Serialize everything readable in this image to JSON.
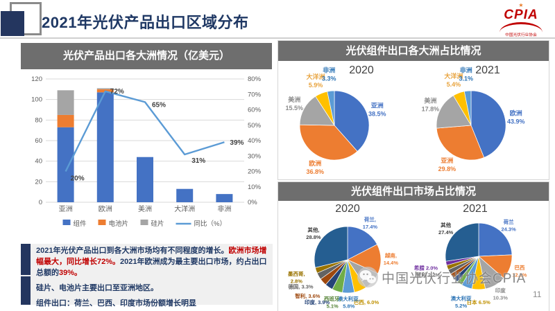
{
  "header": {
    "title": "2021年光伏产品出口区域分布",
    "logo": {
      "text": "CPIA",
      "subtext": "中国光伏行业协会",
      "sun_icon": "★"
    }
  },
  "panels": {
    "bar_panel_title": "光伏产品出口各大洲情况（亿美元）",
    "pie_continent_title": "光伏组件出口各大洲占比情况",
    "pie_market_title": "光伏组件出口市场占比情况"
  },
  "chart_data": [
    {
      "id": "combo",
      "type": "bar",
      "title": "光伏产品出口各大洲情况（亿美元）",
      "categories": [
        "亚洲",
        "欧洲",
        "美洲",
        "大洋洲",
        "非洲"
      ],
      "bar_series": [
        {
          "name": "组件",
          "color": "#4472C4",
          "values": [
            73,
            107,
            44,
            13,
            8
          ]
        },
        {
          "name": "电池片",
          "color": "#ED7D31",
          "values": [
            12,
            3,
            0,
            0,
            0
          ]
        },
        {
          "name": "硅片",
          "color": "#A5A5A5",
          "values": [
            24,
            1,
            0,
            0,
            0
          ]
        }
      ],
      "line_series": {
        "name": "同比（%）",
        "color": "#5B9BD5",
        "values": [
          20,
          72,
          65,
          31,
          39
        ],
        "point_labels": [
          "20%",
          "72%",
          "65%",
          "31%",
          "39%"
        ]
      },
      "y_left": {
        "min": 0,
        "max": 120,
        "step": 20
      },
      "y_right": {
        "min": 0,
        "max": 80,
        "step": 10,
        "suffix": "%"
      },
      "grid": true,
      "legend_position": "bottom"
    },
    {
      "id": "cont2020",
      "type": "pie",
      "title": "2020",
      "slices": [
        {
          "name": "亚洲",
          "pct": 38.5,
          "color": "#4472C4",
          "label": [
            "亚洲",
            "38.5%"
          ],
          "label_color": "#4472C4"
        },
        {
          "name": "欧洲",
          "pct": 36.8,
          "color": "#ED7D31",
          "label": [
            "欧洲",
            "36.8%"
          ],
          "label_color": "#ED7D31"
        },
        {
          "name": "美洲",
          "pct": 15.5,
          "color": "#A5A5A5",
          "label": [
            "美洲",
            "15.5%"
          ],
          "label_color": "#8C8C8C"
        },
        {
          "name": "大洋洲",
          "pct": 5.9,
          "color": "#FFC000",
          "label": [
            "大洋洲",
            "5.9%"
          ],
          "label_color": "#E8A33D"
        },
        {
          "name": "非洲",
          "pct": 3.3,
          "color": "#5B9BD5",
          "label": [
            "非洲",
            "3.3%"
          ],
          "label_color": "#2E75B6"
        }
      ]
    },
    {
      "id": "cont2021",
      "type": "pie",
      "title": "2021",
      "slices": [
        {
          "name": "欧洲",
          "pct": 43.9,
          "color": "#4472C4",
          "label": [
            "欧洲",
            "43.9%"
          ],
          "label_color": "#4472C4"
        },
        {
          "name": "亚洲",
          "pct": 29.8,
          "color": "#ED7D31",
          "label": [
            "亚洲",
            "29.8%"
          ],
          "label_color": "#ED7D31"
        },
        {
          "name": "美洲",
          "pct": 17.8,
          "color": "#A5A5A5",
          "label": [
            "美洲",
            "17.8%"
          ],
          "label_color": "#8C8C8C"
        },
        {
          "name": "大洋洲",
          "pct": 5.4,
          "color": "#FFC000",
          "label": [
            "大洋洲",
            "5.4%"
          ],
          "label_color": "#E8A33D"
        },
        {
          "name": "非洲",
          "pct": 3.1,
          "color": "#5B9BD5",
          "label": [
            "非洲",
            "3.1%"
          ],
          "label_color": "#2E75B6"
        }
      ]
    },
    {
      "id": "mkt2020",
      "type": "pie",
      "title": "2020",
      "slices": [
        {
          "name": "荷兰",
          "pct": 17.4,
          "color": "#4472C4",
          "label": [
            "荷兰,",
            "17.4%"
          ],
          "label_color": "#4472C4"
        },
        {
          "name": "越南",
          "pct": 14.4,
          "color": "#ED7D31",
          "label": [
            "越南,",
            "14.4%"
          ],
          "label_color": "#ED7D31"
        },
        {
          "name": "",
          "pct": 8.9,
          "color": "#A5A5A5",
          "label": [],
          "label_color": "#8C8C8C"
        },
        {
          "name": "巴西",
          "pct": 6.0,
          "color": "#FFC000",
          "label": [
            "巴西, 6.0%"
          ],
          "label_color": "#BF9000"
        },
        {
          "name": "澳大利亚",
          "pct": 5.8,
          "color": "#5B9BD5",
          "label": [
            "澳大利亚,",
            "5.8%"
          ],
          "label_color": "#2E75B6"
        },
        {
          "name": "西班牙",
          "pct": 5.1,
          "color": "#70AD47",
          "label": [
            "西班牙,",
            "5.1%"
          ],
          "label_color": "#548235"
        },
        {
          "name": "印度",
          "pct": 3.9,
          "color": "#264478",
          "label": [
            "印度, 3.9%"
          ],
          "label_color": "#264478"
        },
        {
          "name": "智利",
          "pct": 3.6,
          "color": "#9E480E",
          "label": [
            "智利, 3.6%"
          ],
          "label_color": "#9E480E"
        },
        {
          "name": "德国",
          "pct": 3.3,
          "color": "#636363",
          "label": [
            "德国, 3.3%"
          ],
          "label_color": "#636363"
        },
        {
          "name": "墨西哥",
          "pct": 2.8,
          "color": "#997300",
          "label": [
            "墨西哥,",
            "2.8%"
          ],
          "label_color": "#997300"
        },
        {
          "name": "其他",
          "pct": 28.8,
          "color": "#255E91",
          "label": [
            "其他,",
            "28.8%"
          ],
          "label_color": "#404040"
        }
      ]
    },
    {
      "id": "mkt2021",
      "type": "pie",
      "title": "2021",
      "slices": [
        {
          "name": "荷兰",
          "pct": 24.3,
          "color": "#4472C4",
          "label": [
            "荷兰",
            "24.3%"
          ],
          "label_color": "#4472C4"
        },
        {
          "name": "巴西",
          "pct": 12.2,
          "color": "#ED7D31",
          "label": [
            "巴西",
            "12.2%"
          ],
          "label_color": "#ED7D31"
        },
        {
          "name": "印度",
          "pct": 10.3,
          "color": "#A5A5A5",
          "label": [
            "印度",
            "10.3%"
          ],
          "label_color": "#8C8C8C"
        },
        {
          "name": "日本",
          "pct": 6.5,
          "color": "#FFC000",
          "label": [
            "日本 6.5%"
          ],
          "label_color": "#BF9000"
        },
        {
          "name": "澳大利亚",
          "pct": 5.2,
          "color": "#5B9BD5",
          "label": [
            "澳大利亚",
            "5.2%"
          ],
          "label_color": "#2E75B6"
        },
        {
          "name": "",
          "pct": 2.6,
          "color": "#70AD47",
          "label": [],
          "label_color": "#548235"
        },
        {
          "name": "",
          "pct": 2.5,
          "color": "#264478",
          "label": [],
          "label_color": "#264478"
        },
        {
          "name": "",
          "pct": 2.4,
          "color": "#9E480E",
          "label": [],
          "label_color": "#9E480E"
        },
        {
          "name": "",
          "pct": 2.4,
          "color": "#636363",
          "label": [],
          "label_color": "#636363"
        },
        {
          "name": "智利",
          "pct": 2.2,
          "color": "#997300",
          "label": [
            "智利 2.2%"
          ],
          "label_color": "#636363"
        },
        {
          "name": "希腊",
          "pct": 2.0,
          "color": "#7030A0",
          "label": [
            "希腊 2.0%"
          ],
          "label_color": "#7030A0"
        },
        {
          "name": "其他",
          "pct": 27.4,
          "color": "#255E91",
          "label": [
            "其他",
            "27.4%"
          ],
          "label_color": "#404040"
        }
      ]
    }
  ],
  "summary": {
    "runs1": [
      {
        "t": "2021年光伏产品出口到各大洲市场均有不同程度的增长。",
        "red": false
      },
      {
        "t": "欧洲市场增幅最大，同比增长72%。",
        "red": true
      },
      {
        "t": "2021年欧洲成为最主要出口市场，约占出口总额的",
        "red": false
      },
      {
        "t": "39%。",
        "red": true
      }
    ],
    "line2": "硅片、电池片主要出口至亚洲地区。",
    "line3": "组件出口：荷兰、巴西、印度市场份额增长明显"
  },
  "watermark": {
    "icon": "wechat-icon",
    "text": "中国光伏行业协会CPIA"
  },
  "page_number": "11"
}
